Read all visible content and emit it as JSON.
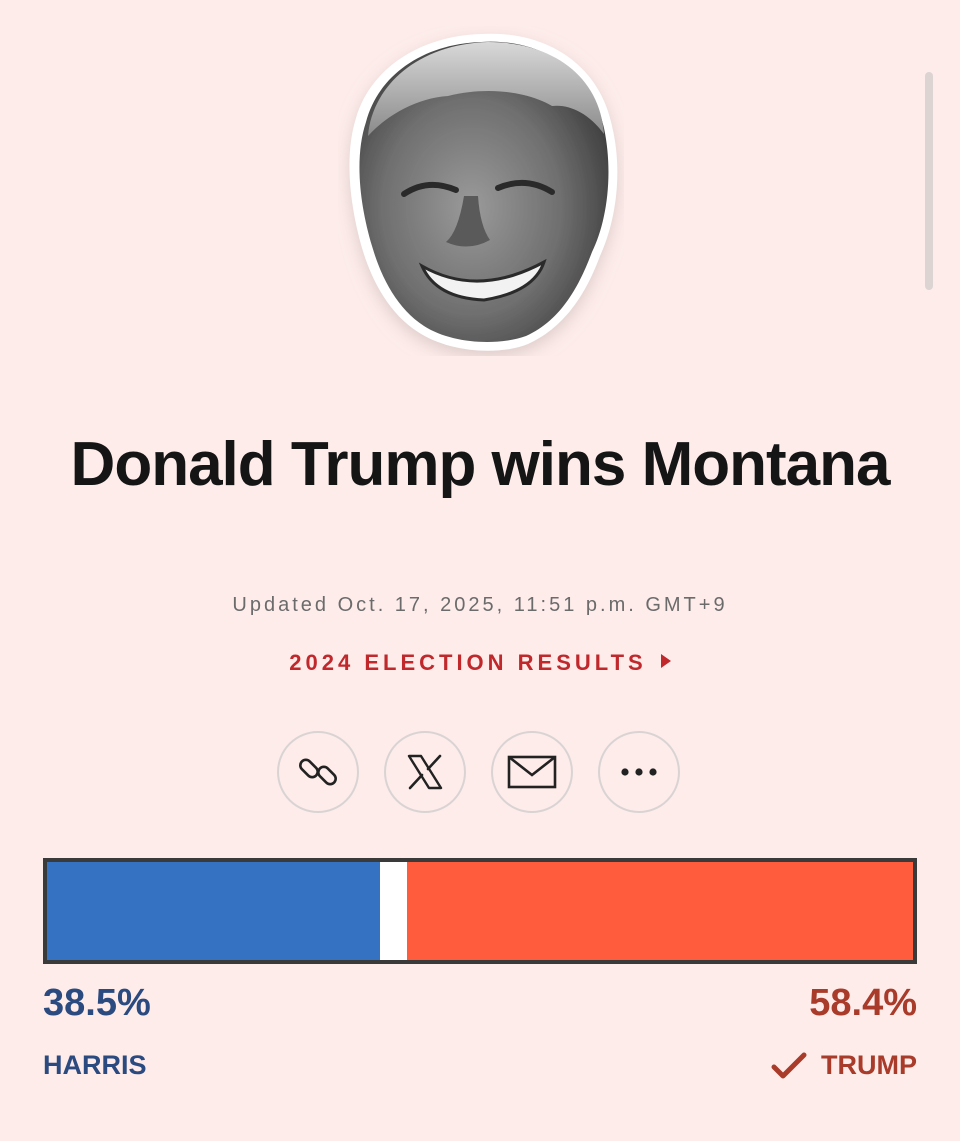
{
  "headline": "Donald Trump wins Montana",
  "updated": "Updated Oct. 17, 2025, 11:51 p.m. GMT+9",
  "results_link": "2024 ELECTION RESULTS",
  "share": [
    {
      "icon": "link-icon"
    },
    {
      "icon": "x-logo-icon"
    },
    {
      "icon": "mail-icon"
    },
    {
      "icon": "more-icon"
    }
  ],
  "colors": {
    "background": "#fdecea",
    "harris": "#3572c1",
    "trump": "#ff5c3e",
    "link": "#c0282c"
  },
  "result": {
    "harris": {
      "name": "HARRIS",
      "percent_label": "38.5%",
      "percent": 38.5
    },
    "trump": {
      "name": "TRUMP",
      "percent_label": "58.4%",
      "percent": 58.4,
      "winner": true
    }
  }
}
